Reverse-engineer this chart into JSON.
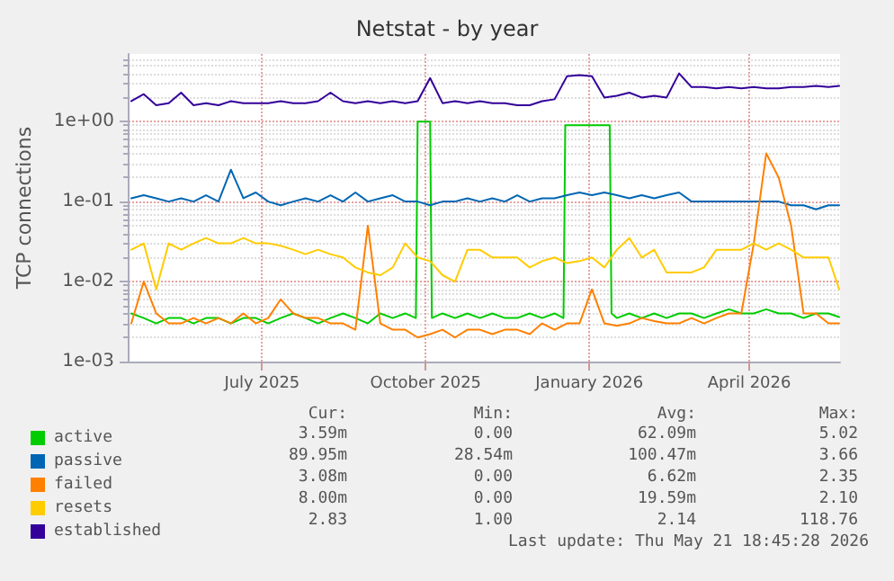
{
  "chart_data": {
    "type": "line",
    "title": "Netstat - by year",
    "ylabel": "TCP connections",
    "x": [
      "2025-04-18",
      "2025-04-25",
      "2025-05-02",
      "2025-05-09",
      "2025-05-16",
      "2025-05-23",
      "2025-05-30",
      "2025-06-06",
      "2025-06-13",
      "2025-06-20",
      "2025-06-27",
      "2025-07-04",
      "2025-07-11",
      "2025-07-18",
      "2025-07-25",
      "2025-08-01",
      "2025-08-08",
      "2025-08-15",
      "2025-08-22",
      "2025-08-29",
      "2025-09-05",
      "2025-09-12",
      "2025-09-19",
      "2025-09-26",
      "2025-10-03",
      "2025-10-10",
      "2025-10-17",
      "2025-10-24",
      "2025-10-31",
      "2025-11-07",
      "2025-11-14",
      "2025-11-21",
      "2025-11-28",
      "2025-12-05",
      "2025-12-12",
      "2025-12-19",
      "2025-12-26",
      "2026-01-02",
      "2026-01-09",
      "2026-01-16",
      "2026-01-23",
      "2026-01-30",
      "2026-02-06",
      "2026-02-13",
      "2026-02-20",
      "2026-02-27",
      "2026-03-06",
      "2026-03-13",
      "2026-03-20",
      "2026-03-27",
      "2026-04-03",
      "2026-04-10",
      "2026-04-17",
      "2026-04-24",
      "2026-05-01",
      "2026-05-08",
      "2026-05-15",
      "2026-05-21"
    ],
    "series": [
      {
        "name": "active",
        "color": "#00cc00",
        "x": [
          "2025-04-18",
          "2025-04-25",
          "2025-05-02",
          "2025-05-09",
          "2025-05-16",
          "2025-05-23",
          "2025-05-30",
          "2025-06-06",
          "2025-06-13",
          "2025-06-20",
          "2025-06-27",
          "2025-07-04",
          "2025-07-11",
          "2025-07-18",
          "2025-07-25",
          "2025-08-01",
          "2025-08-08",
          "2025-08-15",
          "2025-08-22",
          "2025-08-29",
          "2025-09-05",
          "2025-09-12",
          "2025-09-19",
          "2025-09-25",
          "2025-09-26",
          "2025-10-03",
          "2025-10-04",
          "2025-10-10",
          "2025-10-17",
          "2025-10-24",
          "2025-10-31",
          "2025-11-07",
          "2025-11-14",
          "2025-11-21",
          "2025-11-28",
          "2025-12-05",
          "2025-12-12",
          "2025-12-17",
          "2025-12-18",
          "2026-01-12",
          "2026-01-13",
          "2026-01-16",
          "2026-01-23",
          "2026-01-30",
          "2026-02-06",
          "2026-02-13",
          "2026-02-20",
          "2026-02-27",
          "2026-03-06",
          "2026-03-13",
          "2026-03-20",
          "2026-03-27",
          "2026-04-03",
          "2026-04-10",
          "2026-04-17",
          "2026-04-24",
          "2026-05-01",
          "2026-05-08",
          "2026-05-15",
          "2026-05-21"
        ],
        "values": [
          0.004,
          0.0035,
          0.003,
          0.0035,
          0.0035,
          0.003,
          0.0035,
          0.0035,
          0.003,
          0.0035,
          0.0035,
          0.003,
          0.0035,
          0.004,
          0.0035,
          0.003,
          0.0035,
          0.004,
          0.0035,
          0.003,
          0.004,
          0.0035,
          0.004,
          0.0035,
          1,
          1,
          0.0035,
          0.004,
          0.0035,
          0.004,
          0.0035,
          0.004,
          0.0035,
          0.0035,
          0.004,
          0.0035,
          0.004,
          0.0035,
          0.9,
          0.9,
          0.004,
          0.0035,
          0.004,
          0.0035,
          0.004,
          0.0035,
          0.004,
          0.004,
          0.0035,
          0.004,
          0.0045,
          0.004,
          0.004,
          0.0045,
          0.004,
          0.004,
          0.0035,
          0.004,
          0.004,
          0.0036
        ]
      },
      {
        "name": "passive",
        "color": "#0066b3",
        "values": [
          0.11,
          0.12,
          0.11,
          0.1,
          0.11,
          0.1,
          0.12,
          0.1,
          0.25,
          0.11,
          0.13,
          0.1,
          0.09,
          0.1,
          0.11,
          0.1,
          0.12,
          0.1,
          0.13,
          0.1,
          0.11,
          0.12,
          0.1,
          0.1,
          0.09,
          0.1,
          0.1,
          0.11,
          0.1,
          0.11,
          0.1,
          0.12,
          0.1,
          0.11,
          0.11,
          0.12,
          0.13,
          0.12,
          0.13,
          0.12,
          0.11,
          0.12,
          0.11,
          0.12,
          0.13,
          0.1,
          0.1,
          0.1,
          0.1,
          0.1,
          0.1,
          0.1,
          0.1,
          0.09,
          0.09,
          0.08,
          0.09,
          0.09
        ]
      },
      {
        "name": "failed",
        "color": "#ff8000",
        "values": [
          0.003,
          0.01,
          0.004,
          0.003,
          0.003,
          0.0035,
          0.003,
          0.0035,
          0.003,
          0.004,
          0.003,
          0.0035,
          0.006,
          0.004,
          0.0035,
          0.0035,
          0.003,
          0.003,
          0.0025,
          0.05,
          0.003,
          0.0025,
          0.0025,
          0.002,
          0.0022,
          0.0025,
          0.002,
          0.0025,
          0.0025,
          0.0022,
          0.0025,
          0.0025,
          0.0022,
          0.003,
          0.0025,
          0.003,
          0.003,
          0.008,
          0.003,
          0.0028,
          0.003,
          0.0035,
          0.0032,
          0.003,
          0.003,
          0.0035,
          0.003,
          0.0035,
          0.004,
          0.004,
          0.03,
          0.4,
          0.2,
          0.05,
          0.004,
          0.004,
          0.003,
          0.003
        ]
      },
      {
        "name": "resets",
        "color": "#ffcc00",
        "values": [
          0.025,
          0.03,
          0.008,
          0.03,
          0.025,
          0.03,
          0.035,
          0.03,
          0.03,
          0.035,
          0.03,
          0.03,
          0.028,
          0.025,
          0.022,
          0.025,
          0.022,
          0.02,
          0.015,
          0.013,
          0.012,
          0.015,
          0.03,
          0.02,
          0.018,
          0.012,
          0.01,
          0.025,
          0.025,
          0.02,
          0.02,
          0.02,
          0.015,
          0.018,
          0.02,
          0.017,
          0.018,
          0.02,
          0.015,
          0.025,
          0.035,
          0.02,
          0.025,
          0.013,
          0.013,
          0.013,
          0.015,
          0.025,
          0.025,
          0.025,
          0.03,
          0.025,
          0.03,
          0.025,
          0.02,
          0.02,
          0.02,
          0.008
        ]
      },
      {
        "name": "established",
        "color": "#330099",
        "values": [
          1.8,
          2.2,
          1.6,
          1.7,
          2.3,
          1.6,
          1.7,
          1.6,
          1.8,
          1.7,
          1.7,
          1.7,
          1.8,
          1.7,
          1.7,
          1.8,
          2.3,
          1.8,
          1.7,
          1.8,
          1.7,
          1.8,
          1.7,
          1.8,
          3.5,
          1.7,
          1.8,
          1.7,
          1.8,
          1.7,
          1.7,
          1.6,
          1.6,
          1.8,
          1.9,
          3.7,
          3.8,
          3.7,
          2.0,
          2.1,
          2.3,
          2.0,
          2.1,
          2.0,
          4.0,
          2.7,
          2.7,
          2.6,
          2.7,
          2.6,
          2.7,
          2.6,
          2.6,
          2.7,
          2.7,
          2.8,
          2.7,
          2.8
        ]
      }
    ],
    "xlim": [
      "2025-04-17",
      "2026-05-22"
    ],
    "xticks": [
      {
        "value": "2025-07-01",
        "label": "July 2025"
      },
      {
        "value": "2025-10-01",
        "label": "October 2025"
      },
      {
        "value": "2026-01-01",
        "label": "January 2026"
      },
      {
        "value": "2026-04-01",
        "label": "April 2026"
      }
    ],
    "ylim": [
      0.001,
      7
    ],
    "yticks": [
      {
        "value": 0.001,
        "label": "1e-03"
      },
      {
        "value": 0.01,
        "label": "1e-02"
      },
      {
        "value": 0.1,
        "label": "1e-01"
      },
      {
        "value": 1,
        "label": "1e+00"
      }
    ],
    "log": "y",
    "grid": true,
    "legend": "bottom",
    "marker": "none",
    "line_style": "solid",
    "annotations": [
      "Cur:",
      "Min:",
      "Avg:",
      "Max:",
      "3.59m",
      "0.00",
      "62.09m",
      "5.02",
      "89.95m",
      "28.54m",
      "100.47m",
      "3.66",
      "3.08m",
      "0.00",
      "6.62m",
      "2.35",
      "8.00m",
      "0.00",
      "19.59m",
      "2.10",
      "2.83",
      "1.00",
      "2.14",
      "118.76",
      "Last update: Thu May 21 18:45:28 2026"
    ]
  }
}
